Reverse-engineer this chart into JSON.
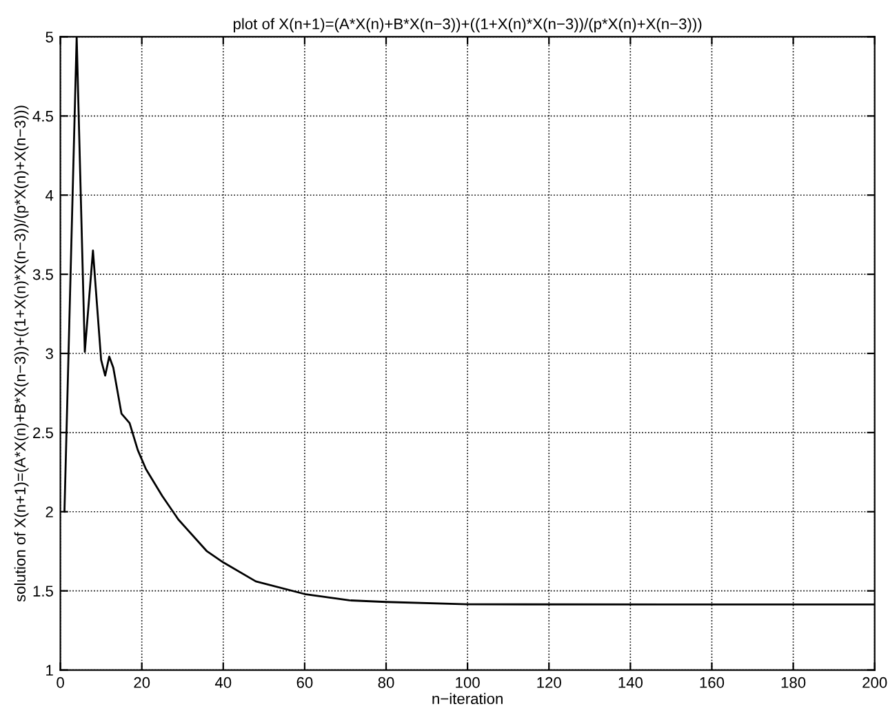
{
  "chart_data": {
    "type": "line",
    "title": "plot of X(n+1)=(A*X(n)+B*X(n−3))+((1+X(n)*X(n−3))/(p*X(n)+X(n−3)))",
    "xlabel": "n−iteration",
    "ylabel": "solution of X(n+1)=(A*X(n)+B*X(n−3))+((1+X(n)*X(n−3))/(p*X(n)+X(n−3)))",
    "x": [
      1,
      4,
      6,
      8,
      10,
      11,
      12,
      13,
      15,
      17,
      19,
      21,
      25,
      29,
      36,
      40,
      48,
      60,
      71,
      80,
      100,
      150,
      200
    ],
    "series": [
      {
        "color": "#000000",
        "values": [
          2.0,
          5.0,
          3.01,
          3.65,
          2.96,
          2.86,
          2.98,
          2.91,
          2.62,
          2.56,
          2.39,
          2.27,
          2.1,
          1.95,
          1.75,
          1.68,
          1.56,
          1.48,
          1.44,
          1.43,
          1.415,
          1.414,
          1.414
        ]
      }
    ],
    "xlim": [
      0,
      200
    ],
    "xticks": [
      0,
      20,
      40,
      60,
      80,
      100,
      120,
      140,
      160,
      180,
      200
    ],
    "ylim": [
      1,
      5
    ],
    "yticks": [
      1,
      1.5,
      2,
      2.5,
      3,
      3.5,
      4,
      4.5,
      5
    ],
    "grid": true,
    "line_style": "solid",
    "marker": "none"
  }
}
